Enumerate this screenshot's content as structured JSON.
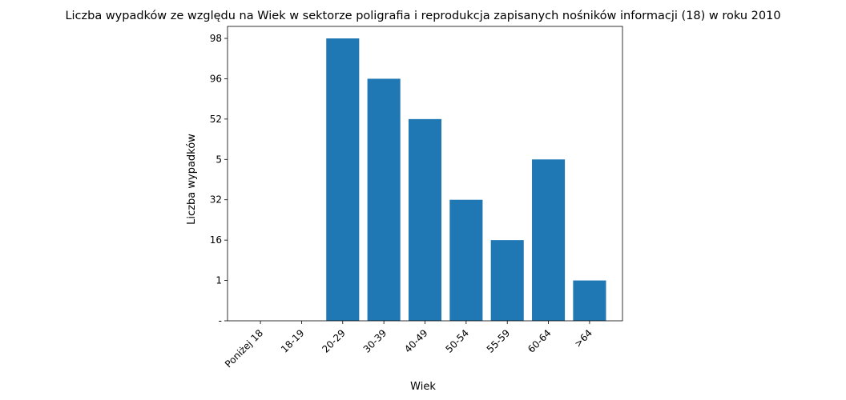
{
  "chart_data": {
    "type": "bar",
    "title": "Liczba wypadków ze względu na Wiek w sektorze poligrafia i reprodukcja zapisanych nośników informacji  (18) w roku 2010",
    "xlabel": "Wiek",
    "ylabel": "Liczba wypadków",
    "categories": [
      "Poniżej 18",
      "18-19",
      "20-29",
      "30-39",
      "40-49",
      "50-54",
      "55-59",
      "60-64",
      ">64"
    ],
    "y_tick_labels": [
      "-",
      "1",
      "16",
      "32",
      "5",
      "52",
      "96",
      "98"
    ],
    "values": [
      "-",
      "-",
      "98",
      "96",
      "52",
      "32",
      "16",
      "5",
      "1"
    ],
    "bar_color": "#1f77b4",
    "grid": false,
    "legend": "none"
  }
}
